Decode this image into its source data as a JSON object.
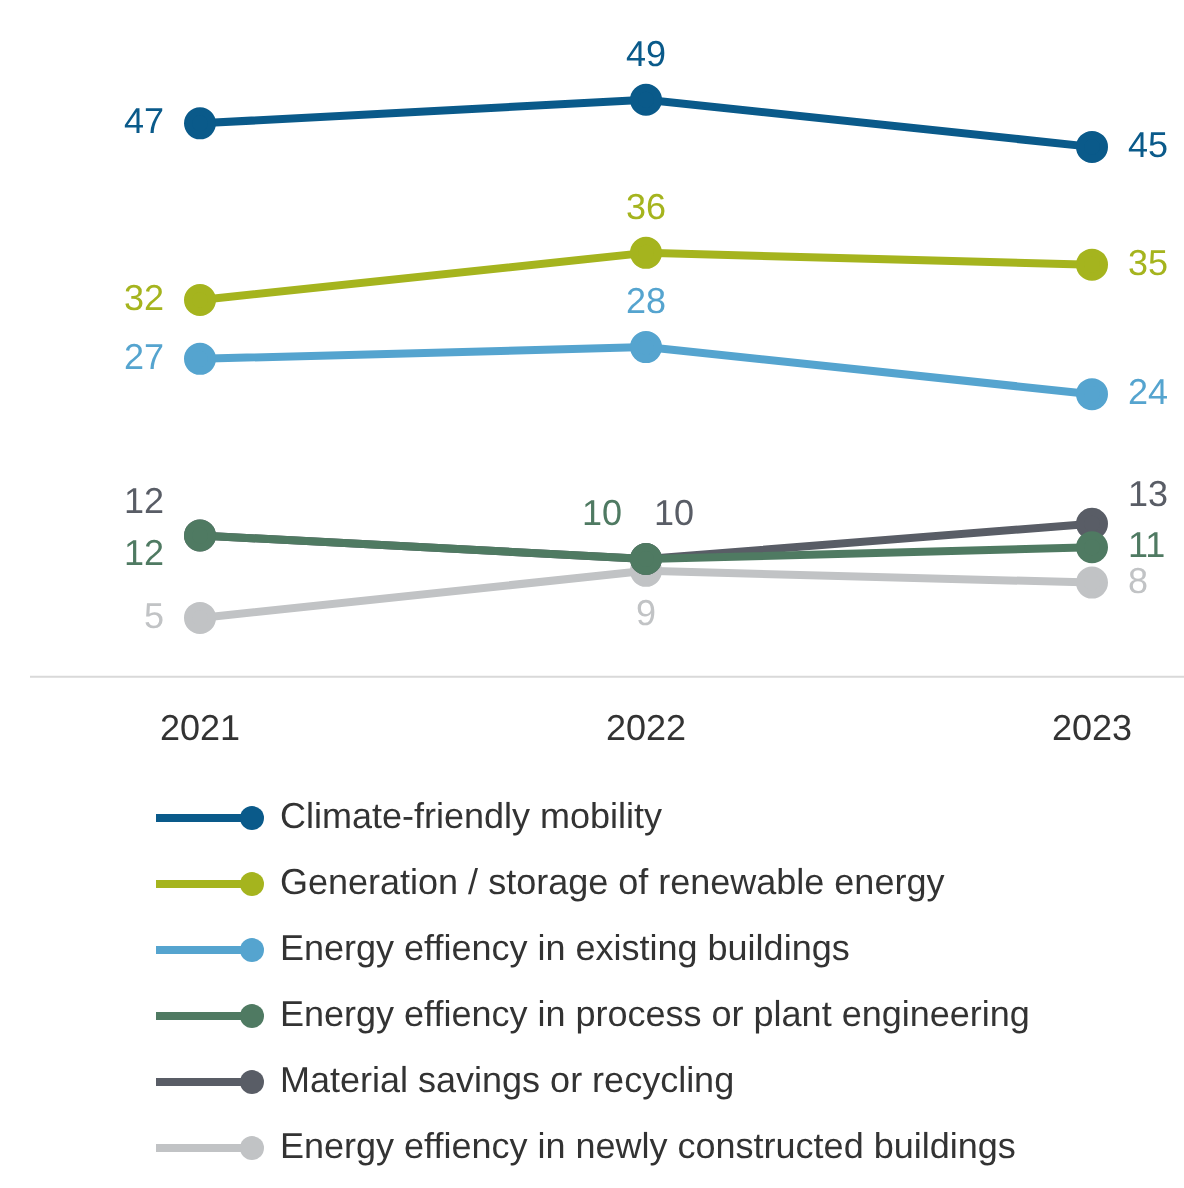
{
  "chart_data": {
    "type": "line",
    "categories": [
      "2021",
      "2022",
      "2023"
    ],
    "series": [
      {
        "name": "Climate-friendly mobility",
        "color": "#0a5a8a",
        "values": [
          47,
          49,
          45
        ]
      },
      {
        "name": "Generation / storage of renewable energy",
        "color": "#a5b41e",
        "values": [
          32,
          36,
          35
        ]
      },
      {
        "name": "Energy effiency in existing buildings",
        "color": "#55a4cf",
        "values": [
          27,
          28,
          24
        ]
      },
      {
        "name": "Energy effiency in process or plant engineering",
        "color": "#4f7a62",
        "values": [
          12,
          10,
          11
        ]
      },
      {
        "name": "Material savings or recycling",
        "color": "#595d66",
        "values": [
          12,
          10,
          13
        ]
      },
      {
        "name": "Energy effiency in newly constructed buildings",
        "color": "#c1c3c5",
        "values": [
          5,
          9,
          8
        ]
      }
    ],
    "tick_labels": "x",
    "grid": false,
    "legend": "bottom",
    "marker": "circle",
    "line_style": "solid",
    "data_labels": true
  }
}
